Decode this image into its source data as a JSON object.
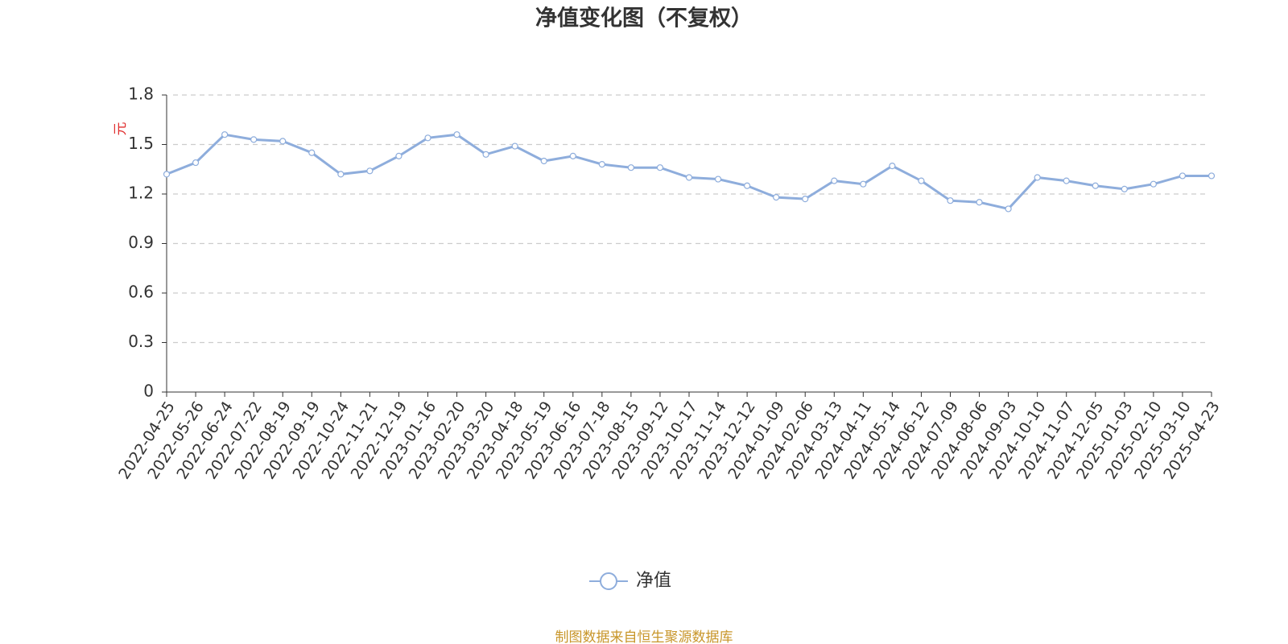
{
  "chart_data": {
    "type": "line",
    "title": "净值变化图（不复权）",
    "y_label": "元",
    "categories": [
      "2022-04-25",
      "2022-05-26",
      "2022-06-24",
      "2022-07-22",
      "2022-08-19",
      "2022-09-19",
      "2022-10-24",
      "2022-11-21",
      "2022-12-19",
      "2023-01-16",
      "2023-02-20",
      "2023-03-20",
      "2023-04-18",
      "2023-05-19",
      "2023-06-16",
      "2023-07-18",
      "2023-08-15",
      "2023-09-12",
      "2023-10-17",
      "2023-11-14",
      "2023-12-12",
      "2024-01-09",
      "2024-02-06",
      "2024-03-13",
      "2024-04-11",
      "2024-05-14",
      "2024-06-12",
      "2024-07-09",
      "2024-08-06",
      "2024-09-03",
      "2024-10-10",
      "2024-11-07",
      "2024-12-05",
      "2025-01-03",
      "2025-02-10",
      "2025-03-10",
      "2025-04-23"
    ],
    "series": [
      {
        "name": "净值",
        "color": "#8eaddc",
        "values": [
          1.32,
          1.39,
          1.56,
          1.53,
          1.52,
          1.45,
          1.32,
          1.34,
          1.43,
          1.54,
          1.56,
          1.44,
          1.49,
          1.4,
          1.43,
          1.38,
          1.36,
          1.36,
          1.3,
          1.29,
          1.25,
          1.18,
          1.17,
          1.28,
          1.26,
          1.37,
          1.28,
          1.16,
          1.15,
          1.11,
          1.3,
          1.28,
          1.25,
          1.23,
          1.26,
          1.31,
          1.31
        ]
      }
    ],
    "ylim": [
      0,
      1.8
    ],
    "yticks": [
      0,
      0.3,
      0.6,
      0.9,
      1.2,
      1.5,
      1.8
    ],
    "grid": true,
    "legend": "bottom",
    "source": "制图数据来自恒生聚源数据库"
  }
}
